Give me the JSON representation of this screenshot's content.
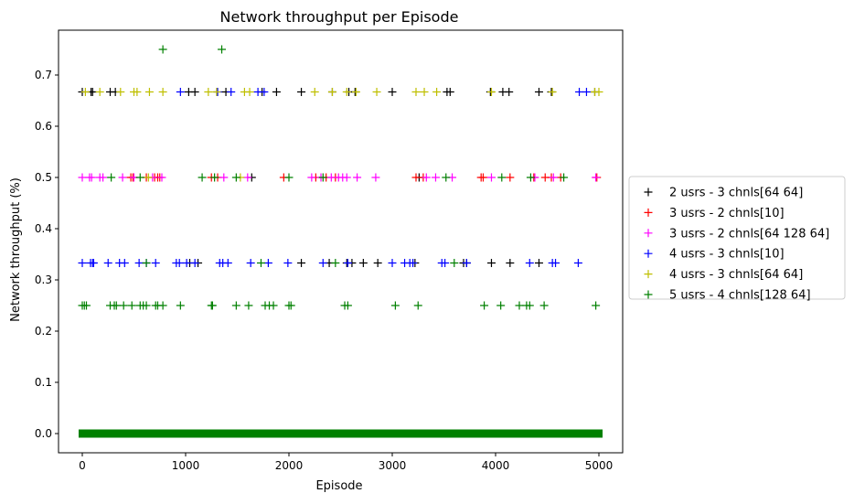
{
  "chart_data": {
    "type": "scatter",
    "title": "Network throughput per Episode",
    "xlabel": "Episode",
    "ylabel": "Network throughput (%)",
    "xlim": [
      -230,
      5230
    ],
    "ylim": [
      -0.0375,
      0.7875
    ],
    "xticks": [
      0,
      1000,
      2000,
      3000,
      4000,
      5000
    ],
    "xtick_labels": [
      "0",
      "1000",
      "2000",
      "3000",
      "4000",
      "5000"
    ],
    "yticks": [
      0.0,
      0.1,
      0.2,
      0.3,
      0.4,
      0.5,
      0.6,
      0.7
    ],
    "ytick_labels": [
      "0.0",
      "0.1",
      "0.2",
      "0.3",
      "0.4",
      "0.5",
      "0.6",
      "0.7"
    ],
    "marker": "+",
    "grid": false,
    "legend_position": "outside right",
    "baseline": {
      "y": 0.0,
      "x_range": [
        0,
        5000
      ],
      "note": "all series have many points at 0.0 across all episodes"
    },
    "series": [
      {
        "name": "2 usrs - 3 chnls[64 64]",
        "color": "#000000",
        "points": [
          [
            0,
            0.667
          ],
          [
            85,
            0.667
          ],
          [
            100,
            0.667
          ],
          [
            270,
            0.667
          ],
          [
            320,
            0.667
          ],
          [
            1030,
            0.667
          ],
          [
            1090,
            0.667
          ],
          [
            1390,
            0.667
          ],
          [
            1740,
            0.667
          ],
          [
            1880,
            0.667
          ],
          [
            2120,
            0.667
          ],
          [
            2420,
            0.667
          ],
          [
            2580,
            0.667
          ],
          [
            2640,
            0.667
          ],
          [
            3000,
            0.667
          ],
          [
            3530,
            0.667
          ],
          [
            3560,
            0.667
          ],
          [
            3950,
            0.667
          ],
          [
            4070,
            0.667
          ],
          [
            4130,
            0.667
          ],
          [
            4420,
            0.667
          ],
          [
            4540,
            0.667
          ],
          [
            4960,
            0.667
          ],
          [
            1640,
            0.5
          ],
          [
            3260,
            0.5
          ],
          [
            1040,
            0.333
          ],
          [
            1120,
            0.333
          ],
          [
            2120,
            0.333
          ],
          [
            2390,
            0.333
          ],
          [
            2560,
            0.333
          ],
          [
            2610,
            0.333
          ],
          [
            2720,
            0.333
          ],
          [
            2860,
            0.333
          ],
          [
            3220,
            0.333
          ],
          [
            3690,
            0.333
          ],
          [
            3720,
            0.333
          ],
          [
            3960,
            0.333
          ],
          [
            4140,
            0.333
          ],
          [
            4420,
            0.333
          ]
        ]
      },
      {
        "name": "3 usrs - 2 chnls[10]",
        "color": "#ff0000",
        "points": [
          [
            470,
            0.5
          ],
          [
            490,
            0.5
          ],
          [
            620,
            0.5
          ],
          [
            700,
            0.5
          ],
          [
            730,
            0.5
          ],
          [
            750,
            0.5
          ],
          [
            1250,
            0.5
          ],
          [
            1310,
            0.5
          ],
          [
            1950,
            0.5
          ],
          [
            2260,
            0.5
          ],
          [
            2360,
            0.5
          ],
          [
            2450,
            0.5
          ],
          [
            3230,
            0.5
          ],
          [
            3300,
            0.5
          ],
          [
            3860,
            0.5
          ],
          [
            3880,
            0.5
          ],
          [
            4140,
            0.5
          ],
          [
            4370,
            0.5
          ],
          [
            4480,
            0.5
          ],
          [
            4540,
            0.5
          ],
          [
            4630,
            0.5
          ],
          [
            4980,
            0.5
          ]
        ]
      },
      {
        "name": "3 usrs - 2 chnls[64 128 64]",
        "color": "#ff00ff",
        "points": [
          [
            0,
            0.5
          ],
          [
            70,
            0.5
          ],
          [
            90,
            0.5
          ],
          [
            170,
            0.5
          ],
          [
            200,
            0.5
          ],
          [
            390,
            0.5
          ],
          [
            500,
            0.5
          ],
          [
            680,
            0.5
          ],
          [
            770,
            0.5
          ],
          [
            1370,
            0.5
          ],
          [
            1600,
            0.5
          ],
          [
            2220,
            0.5
          ],
          [
            2310,
            0.5
          ],
          [
            2410,
            0.5
          ],
          [
            2480,
            0.5
          ],
          [
            2520,
            0.5
          ],
          [
            2560,
            0.5
          ],
          [
            2660,
            0.5
          ],
          [
            2840,
            0.5
          ],
          [
            3330,
            0.5
          ],
          [
            3420,
            0.5
          ],
          [
            3580,
            0.5
          ],
          [
            3960,
            0.5
          ],
          [
            4380,
            0.5
          ],
          [
            4560,
            0.5
          ],
          [
            4970,
            0.5
          ]
        ]
      },
      {
        "name": "4 usrs - 3 chnls[10]",
        "color": "#0000ff",
        "points": [
          [
            950,
            0.667
          ],
          [
            1310,
            0.667
          ],
          [
            1440,
            0.667
          ],
          [
            1700,
            0.667
          ],
          [
            1760,
            0.667
          ],
          [
            4810,
            0.667
          ],
          [
            4880,
            0.667
          ],
          [
            0,
            0.333
          ],
          [
            80,
            0.333
          ],
          [
            100,
            0.333
          ],
          [
            110,
            0.333
          ],
          [
            250,
            0.333
          ],
          [
            360,
            0.333
          ],
          [
            410,
            0.333
          ],
          [
            550,
            0.333
          ],
          [
            620,
            0.333
          ],
          [
            710,
            0.333
          ],
          [
            910,
            0.333
          ],
          [
            940,
            0.333
          ],
          [
            1010,
            0.333
          ],
          [
            1090,
            0.333
          ],
          [
            1330,
            0.333
          ],
          [
            1360,
            0.333
          ],
          [
            1410,
            0.333
          ],
          [
            1630,
            0.333
          ],
          [
            1800,
            0.333
          ],
          [
            1990,
            0.333
          ],
          [
            2330,
            0.333
          ],
          [
            2570,
            0.333
          ],
          [
            3000,
            0.333
          ],
          [
            3120,
            0.333
          ],
          [
            3170,
            0.333
          ],
          [
            3200,
            0.333
          ],
          [
            3480,
            0.333
          ],
          [
            3510,
            0.333
          ],
          [
            3720,
            0.333
          ],
          [
            4330,
            0.333
          ],
          [
            4550,
            0.333
          ],
          [
            4580,
            0.333
          ],
          [
            4800,
            0.333
          ]
        ]
      },
      {
        "name": "4 usrs - 3 chnls[64 64]",
        "color": "#bfbf00",
        "points": [
          [
            30,
            0.667
          ],
          [
            170,
            0.667
          ],
          [
            370,
            0.667
          ],
          [
            500,
            0.667
          ],
          [
            530,
            0.667
          ],
          [
            650,
            0.667
          ],
          [
            780,
            0.667
          ],
          [
            1220,
            0.667
          ],
          [
            1300,
            0.667
          ],
          [
            1570,
            0.667
          ],
          [
            1620,
            0.667
          ],
          [
            2250,
            0.667
          ],
          [
            2420,
            0.667
          ],
          [
            2560,
            0.667
          ],
          [
            2650,
            0.667
          ],
          [
            2850,
            0.667
          ],
          [
            3230,
            0.667
          ],
          [
            3310,
            0.667
          ],
          [
            3430,
            0.667
          ],
          [
            3960,
            0.667
          ],
          [
            4550,
            0.667
          ],
          [
            4960,
            0.667
          ],
          [
            5000,
            0.667
          ],
          [
            640,
            0.5
          ],
          [
            1530,
            0.5
          ]
        ]
      },
      {
        "name": "5 usrs - 4 chnls[128 64]",
        "color": "#008000",
        "points": [
          [
            780,
            0.75
          ],
          [
            1350,
            0.75
          ],
          [
            280,
            0.5
          ],
          [
            560,
            0.5
          ],
          [
            1160,
            0.5
          ],
          [
            1280,
            0.5
          ],
          [
            1490,
            0.5
          ],
          [
            2000,
            0.5
          ],
          [
            2330,
            0.5
          ],
          [
            3520,
            0.5
          ],
          [
            4060,
            0.5
          ],
          [
            4340,
            0.5
          ],
          [
            4660,
            0.5
          ],
          [
            620,
            0.333
          ],
          [
            1730,
            0.333
          ],
          [
            2450,
            0.333
          ],
          [
            3600,
            0.333
          ],
          [
            0,
            0.25
          ],
          [
            20,
            0.25
          ],
          [
            40,
            0.25
          ],
          [
            270,
            0.25
          ],
          [
            310,
            0.25
          ],
          [
            330,
            0.25
          ],
          [
            400,
            0.25
          ],
          [
            480,
            0.25
          ],
          [
            560,
            0.25
          ],
          [
            590,
            0.25
          ],
          [
            620,
            0.25
          ],
          [
            710,
            0.25
          ],
          [
            730,
            0.25
          ],
          [
            780,
            0.25
          ],
          [
            950,
            0.25
          ],
          [
            1250,
            0.25
          ],
          [
            1260,
            0.25
          ],
          [
            1490,
            0.25
          ],
          [
            1610,
            0.25
          ],
          [
            1770,
            0.25
          ],
          [
            1810,
            0.25
          ],
          [
            1850,
            0.25
          ],
          [
            2000,
            0.25
          ],
          [
            2020,
            0.25
          ],
          [
            2540,
            0.25
          ],
          [
            2570,
            0.25
          ],
          [
            3030,
            0.25
          ],
          [
            3250,
            0.25
          ],
          [
            3890,
            0.25
          ],
          [
            4050,
            0.25
          ],
          [
            4230,
            0.25
          ],
          [
            4300,
            0.25
          ],
          [
            4330,
            0.25
          ],
          [
            4470,
            0.25
          ],
          [
            4970,
            0.25
          ]
        ]
      }
    ]
  }
}
